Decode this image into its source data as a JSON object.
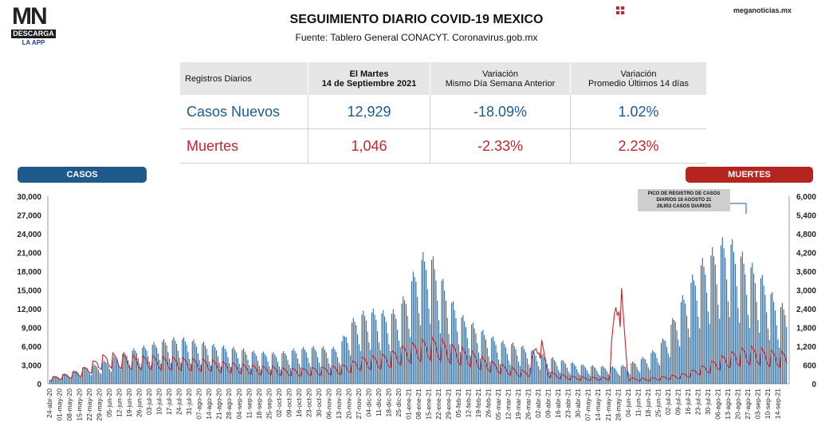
{
  "header": {
    "logo_text": "MN",
    "logo_bar": "DESCARGA",
    "logo_sub": "LA APP",
    "title": "SEGUIMIENTO DIARIO COVID-19 MEXICO",
    "source": "Fuente: Tablero General CONACYT. Coronavirus.gob.mx",
    "site": "meganoticias.mx"
  },
  "table": {
    "h_label": "Registros Diarios",
    "h_date_1": "El Martes",
    "h_date_2": "14 de Septiembre 2021",
    "h_var1_1": "Variación",
    "h_var1_2": "Mismo Día Semana Anterior",
    "h_var2_1": "Variación",
    "h_var2_2": "Promedio Últimos 14 días",
    "casos": {
      "label": "Casos Nuevos",
      "value": "12,929",
      "var_week": "-18.09%",
      "var_14": "1.02%"
    },
    "muertes": {
      "label": "Muertes",
      "value": "1,046",
      "var_week": "-2.33%",
      "var_14": "2.23%"
    }
  },
  "labels": {
    "casos": "CASOS",
    "muertes": "MUERTES"
  },
  "callout": {
    "line1": "PICO DE REGISTRO DE CASOS",
    "line2": "DIARIOS 18 AGOSTO 21",
    "line3": "28,953 CASOS DIARIOS"
  },
  "colors": {
    "casos": "#1f5a8c",
    "muertes": "#c0282d"
  },
  "chart_data": {
    "type": "bar",
    "title": "",
    "left_axis": {
      "label": "CASOS",
      "ticks": [
        "30,000",
        "27,000",
        "24,000",
        "21,000",
        "18,000",
        "15,000",
        "12,000",
        "9,000",
        "6,000",
        "3,000",
        "0"
      ],
      "range": [
        0,
        30000
      ]
    },
    "right_axis": {
      "label": "MUERTES",
      "ticks": [
        "6,000",
        "5,400",
        "4,800",
        "4,200",
        "3,600",
        "3,000",
        "2,400",
        "1,800",
        "1,200",
        "600",
        "0"
      ],
      "range": [
        0,
        6000
      ]
    },
    "x_tick_labels": [
      "24-abr-20",
      "01-may-20",
      "08-may-20",
      "15-may-20",
      "22-may-20",
      "29-may-20",
      "05-jun-20",
      "12-jun-20",
      "19-jun-20",
      "26-jun-20",
      "03-jul-20",
      "10-jul-20",
      "17-jul-20",
      "24-jul-20",
      "31-jul-20",
      "07-ago-20",
      "14-ago-20",
      "21-ago-20",
      "28-ago-20",
      "04-sep-20",
      "11-sep-20",
      "18-sep-20",
      "25-sep-20",
      "02-oct-20",
      "09-oct-20",
      "16-oct-20",
      "23-oct-20",
      "30-oct-20",
      "06-nov-20",
      "13-nov-20",
      "20-nov-20",
      "27-nov-20",
      "04-dic-20",
      "11-dic-20",
      "18-dic-20",
      "25-dic-20",
      "01-ene-21",
      "08-ene-21",
      "15-ene-21",
      "22-ene-21",
      "29-ene-21",
      "05-feb-21",
      "12-feb-21",
      "19-feb-21",
      "26-feb-21",
      "05-mar-21",
      "12-mar-21",
      "19-mar-21",
      "26-mar-21",
      "02-abr-21",
      "09-abr-21",
      "16-abr-21",
      "23-abr-21",
      "30-abr-21",
      "07-may-21",
      "14-may-21",
      "21-may-21",
      "28-may-21",
      "04-jun-21",
      "11-jun-21",
      "18-jun-21",
      "25-jun-21",
      "02-jul-21",
      "09-jul-21",
      "16-jul-21",
      "23-jul-21",
      "30-jul-21",
      "06-ago-21",
      "13-ago-21",
      "20-ago-21",
      "27-ago-21",
      "03-sep-21",
      "10-sep-21",
      "14-sep-21"
    ],
    "series": [
      {
        "name": "CASOS",
        "axis": "left",
        "weekly_peak": [
          1100,
          1500,
          1900,
          2500,
          3000,
          3300,
          4200,
          4800,
          5500,
          5900,
          6400,
          7000,
          7300,
          7600,
          7200,
          6900,
          6500,
          6200,
          6000,
          5800,
          5400,
          5200,
          5100,
          5000,
          5500,
          5800,
          6000,
          6100,
          5800,
          6100,
          9800,
          11500,
          12000,
          12000,
          11500,
          12500,
          16000,
          20500,
          21800,
          18500,
          14500,
          11500,
          10300,
          9100,
          8000,
          7000,
          6800,
          6400,
          5700,
          5100,
          4400,
          4000,
          3600,
          3200,
          3000,
          2900,
          2800,
          2800,
          3300,
          3900,
          4800,
          6100,
          8800,
          12800,
          16000,
          19500,
          21000,
          23000,
          24000,
          22000,
          20000,
          18500,
          16000,
          12929
        ]
      },
      {
        "name": "MUERTES",
        "axis": "right",
        "weekly_peak": [
          200,
          270,
          340,
          450,
          650,
          900,
          1000,
          950,
          920,
          880,
          900,
          880,
          860,
          840,
          820,
          800,
          780,
          720,
          690,
          640,
          610,
          560,
          580,
          520,
          500,
          480,
          520,
          520,
          560,
          580,
          680,
          840,
          890,
          930,
          1000,
          1170,
          1300,
          1400,
          1500,
          1480,
          1300,
          1200,
          1100,
          920,
          760,
          650,
          560,
          450,
          420,
          1800,
          400,
          320,
          260,
          230,
          210,
          220,
          200,
          4200,
          200,
          180,
          180,
          220,
          260,
          300,
          380,
          540,
          660,
          860,
          1000,
          1120,
          1220,
          1180,
          1100,
          1046
        ]
      }
    ],
    "x_tick_count": 74,
    "grid": false,
    "annotation": "PICO DE REGISTRO DE CASOS DIARIOS 18 AGOSTO 21 28,953 CASOS DIARIOS"
  }
}
